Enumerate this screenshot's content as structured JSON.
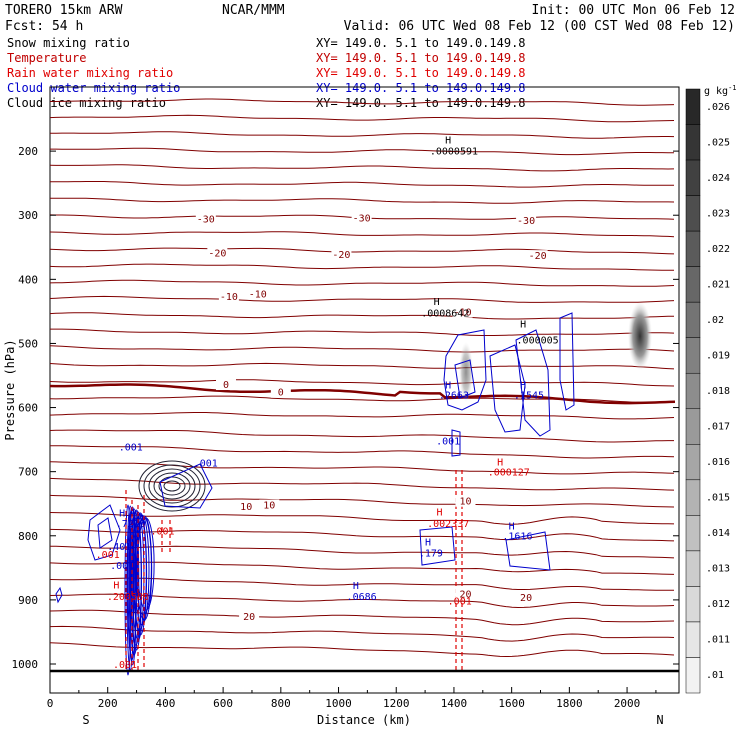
{
  "header": {
    "model": "TORERO  15km ARW",
    "center": "NCAR/MMM",
    "init": "Init: 00 UTC Mon 06 Feb 12",
    "fcst": "Fcst:   54 h",
    "valid": "Valid: 06 UTC Wed 08 Feb 12 (00 CST Wed 08 Feb 12)"
  },
  "legend": [
    {
      "name": "Snow mixing ratio",
      "xy": "XY= 149.0.  5.1 to 149.0.149.8",
      "color": "#000000"
    },
    {
      "name": "Temperature",
      "xy": "XY= 149.0.  5.1 to 149.0.149.8",
      "color": "#c00000"
    },
    {
      "name": "Rain water mixing ratio",
      "xy": "XY= 149.0.  5.1 to 149.0.149.8",
      "color": "#e00000"
    },
    {
      "name": "Cloud water mixing ratio",
      "xy": "XY= 149.0.  5.1 to 149.0.149.8",
      "color": "#0000cc"
    },
    {
      "name": "Cloud ice mixing ratio",
      "xy": "XY= 149.0.  5.1 to 149.0.149.8",
      "color": "#000000"
    }
  ],
  "colors": {
    "temperature": "#800000",
    "rain": "#e00000",
    "cloud_water": "#0000cc",
    "snow": "#000000"
  },
  "chart_data": {
    "type": "contour_cross_section",
    "xlabel": "Distance (km)",
    "ylabel": "Pressure (hPa)",
    "xlim": [
      0,
      2180
    ],
    "ylim": [
      1020,
      100
    ],
    "x_ticks": [
      0,
      200,
      400,
      600,
      800,
      1000,
      1200,
      1400,
      1600,
      1800,
      2000
    ],
    "y_ticks": [
      200,
      300,
      400,
      500,
      600,
      700,
      800,
      900,
      1000
    ],
    "end_labels": {
      "left": "S",
      "right": "N"
    },
    "colorbar": {
      "unit": "g kg",
      "unit_exp": "-1",
      "ticks": [
        ".026",
        ".025",
        ".024",
        ".023",
        ".022",
        ".021",
        ".02",
        ".019",
        ".018",
        ".017",
        ".016",
        ".015",
        ".014",
        ".013",
        ".012",
        ".011",
        ".01"
      ]
    },
    "temperature_labels": [
      {
        "text": "-30",
        "x": 540,
        "p": 310
      },
      {
        "text": "-30",
        "x": 1080,
        "p": 308
      },
      {
        "text": "-30",
        "x": 1650,
        "p": 312
      },
      {
        "text": "-20",
        "x": 580,
        "p": 363
      },
      {
        "text": "-20",
        "x": 1010,
        "p": 365
      },
      {
        "text": "-20",
        "x": 1690,
        "p": 367
      },
      {
        "text": "-10",
        "x": 620,
        "p": 431
      },
      {
        "text": "-10",
        "x": 720,
        "p": 427
      },
      {
        "text": "-10",
        "x": 1430,
        "p": 455
      },
      {
        "text": "0",
        "x": 610,
        "p": 568
      },
      {
        "text": "0",
        "x": 800,
        "p": 580
      },
      {
        "text": "10",
        "x": 680,
        "p": 758
      },
      {
        "text": "10",
        "x": 760,
        "p": 756
      },
      {
        "text": "10",
        "x": 1440,
        "p": 750
      },
      {
        "text": "20",
        "x": 690,
        "p": 930
      },
      {
        "text": "20",
        "x": 1440,
        "p": 895
      },
      {
        "text": "20",
        "x": 1650,
        "p": 900
      }
    ],
    "annotations": [
      {
        "text": "H",
        "x": 1380,
        "p": 188,
        "color": "#000000"
      },
      {
        "text": ".0000591",
        "x": 1400,
        "p": 205,
        "color": "#000000"
      },
      {
        "text": "H",
        "x": 1340,
        "p": 440,
        "color": "#000000"
      },
      {
        "text": ".0008642",
        "x": 1370,
        "p": 458,
        "color": "#000000"
      },
      {
        "text": "H",
        "x": 1640,
        "p": 475,
        "color": "#000000"
      },
      {
        "text": ".000005",
        "x": 1690,
        "p": 500,
        "color": "#000000"
      },
      {
        "text": "H",
        "x": 1380,
        "p": 570,
        "color": "#0000cc"
      },
      {
        "text": ".2663",
        "x": 1400,
        "p": 586,
        "color": "#0000cc"
      },
      {
        "text": "H",
        "x": 1640,
        "p": 570,
        "color": "#0000cc"
      },
      {
        "text": ".1545",
        "x": 1660,
        "p": 586,
        "color": "#0000cc"
      },
      {
        "text": ".001",
        "x": 1380,
        "p": 658,
        "color": "#0000cc"
      },
      {
        "text": "H",
        "x": 1560,
        "p": 690,
        "color": "#e00000"
      },
      {
        "text": ".000127",
        "x": 1590,
        "p": 706,
        "color": "#e00000"
      },
      {
        "text": "H",
        "x": 1350,
        "p": 768,
        "color": "#e00000"
      },
      {
        "text": ".002337",
        "x": 1380,
        "p": 786,
        "color": "#e00000"
      },
      {
        "text": "H",
        "x": 1600,
        "p": 790,
        "color": "#0000cc"
      },
      {
        "text": ".1616",
        "x": 1620,
        "p": 806,
        "color": "#0000cc"
      },
      {
        "text": "H",
        "x": 1310,
        "p": 815,
        "color": "#0000cc"
      },
      {
        "text": ".179",
        "x": 1320,
        "p": 832,
        "color": "#0000cc"
      },
      {
        "text": "H",
        "x": 1060,
        "p": 883,
        "color": "#0000cc"
      },
      {
        "text": ".0686",
        "x": 1080,
        "p": 900,
        "color": "#0000cc"
      },
      {
        "text": ".001",
        "x": 1420,
        "p": 907,
        "color": "#e00000"
      },
      {
        "text": ".001",
        "x": 280,
        "p": 667,
        "color": "#0000cc"
      },
      {
        "text": ".001",
        "x": 540,
        "p": 692,
        "color": "#0000cc"
      },
      {
        "text": "H",
        "x": 250,
        "p": 770,
        "color": "#0000cc"
      },
      {
        "text": ".7219",
        "x": 280,
        "p": 786,
        "color": "#0000cc"
      },
      {
        "text": ".001",
        "x": 390,
        "p": 798,
        "color": "#e00000"
      },
      {
        "text": ".401",
        "x": 240,
        "p": 822,
        "color": "#0000cc"
      },
      {
        "text": ".001",
        "x": 200,
        "p": 835,
        "color": "#e00000"
      },
      {
        "text": ".001",
        "x": 250,
        "p": 852,
        "color": "#0000cc"
      },
      {
        "text": "H",
        "x": 230,
        "p": 882,
        "color": "#e00000"
      },
      {
        "text": ".200588",
        "x": 270,
        "p": 900,
        "color": "#e00000"
      },
      {
        "text": ".001",
        "x": 260,
        "p": 1006,
        "color": "#e00000"
      }
    ]
  }
}
